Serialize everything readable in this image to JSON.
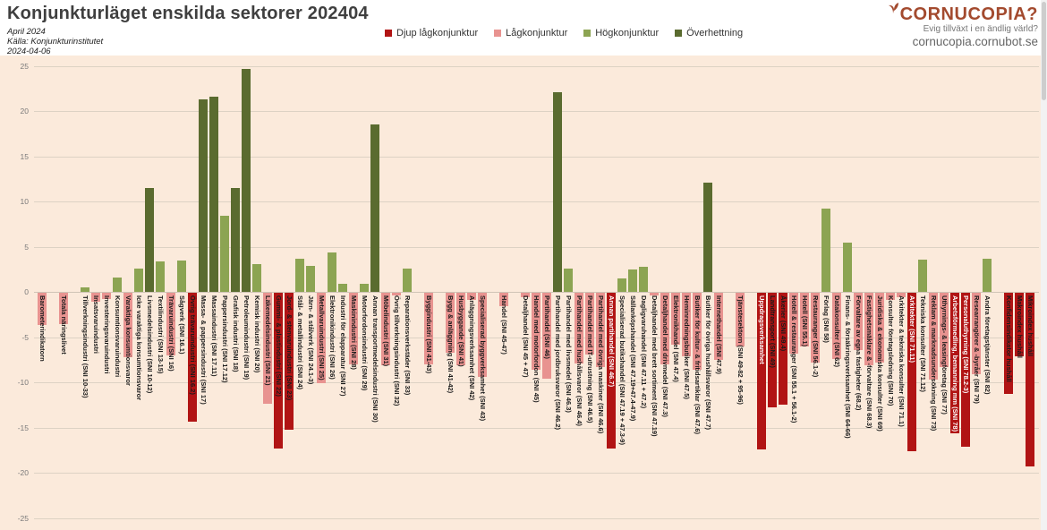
{
  "header": {
    "title": "Konjunkturläget enskilda sektorer 202404",
    "subtitle": [
      "April 2024",
      "Källa: Konjunkturinstitutet",
      "2024-04-06"
    ]
  },
  "logo": {
    "name": "CORNUCOPIA?",
    "tagline": "Evig tillväxt i en ändlig värld?",
    "url": "cornucopia.cornubot.se",
    "color": "#a34a2e"
  },
  "colors": {
    "deep_low": "#b11414",
    "low": "#e89390",
    "high": "#8ca452",
    "overheat": "#5a6b2f"
  },
  "legend": [
    {
      "key": "deep_low",
      "label": "Djup lågkonjunktur"
    },
    {
      "key": "low",
      "label": "Lågkonjunktur"
    },
    {
      "key": "high",
      "label": "Högkonjunktur"
    },
    {
      "key": "overheat",
      "label": "Överhettning"
    }
  ],
  "chart_data": {
    "type": "bar",
    "title": "Konjunkturläget enskilda sektorer 202404",
    "ylim": [
      -25,
      25
    ],
    "yticks": [
      25,
      20,
      15,
      10,
      5,
      0,
      -5,
      -10,
      -15,
      -20,
      -25
    ],
    "grid": true,
    "legend_position": "top",
    "series": [
      {
        "label": "Barometerindikatorn",
        "value": -3.6,
        "cat": "low"
      },
      {
        "label": "Totala näringslivet",
        "value": -3.5,
        "cat": "low",
        "gap": true
      },
      {
        "label": "Tillverkningsindustri (SNI 10-33)",
        "value": 0.5,
        "cat": "high",
        "gap": true
      },
      {
        "label": "Insatsvaruindustri",
        "value": -1.0,
        "cat": "low"
      },
      {
        "label": "Investeringsvaruindustri",
        "value": -0.7,
        "cat": "low"
      },
      {
        "label": "Konsumtionsvaruindustri",
        "value": 1.6,
        "cat": "high"
      },
      {
        "label": "Varaktiga konsumtionsvaror",
        "value": -7.1,
        "cat": "low"
      },
      {
        "label": "Icke varaktiga konsumtionsvaror",
        "value": 2.6,
        "cat": "high"
      },
      {
        "label": "Livsmedelsindustri (SNI 10-12)",
        "value": 11.5,
        "cat": "overheat"
      },
      {
        "label": "Textilindustri (SNI 13-15)",
        "value": 3.4,
        "cat": "high"
      },
      {
        "label": "Trävaruindustri (SNI 16)",
        "value": -6.9,
        "cat": "low"
      },
      {
        "label": "Sågverk (SNI 16.1)",
        "value": 3.5,
        "cat": "high"
      },
      {
        "label": "Övrig trävaruindustri (SNI 16.2)",
        "value": -14.3,
        "cat": "deep_low"
      },
      {
        "label": "Massa- & pappersindustri (SNI 17)",
        "value": 21.3,
        "cat": "overheat"
      },
      {
        "label": "Massaindustri (SNI 17.11)",
        "value": 21.6,
        "cat": "overheat"
      },
      {
        "label": "Pappersindustri (SNI 17.12)",
        "value": 8.4,
        "cat": "high"
      },
      {
        "label": "Grafisk industri (SNI 18)",
        "value": 11.5,
        "cat": "overheat"
      },
      {
        "label": "Petroleumindustri (SNI 19)",
        "value": 24.7,
        "cat": "overheat"
      },
      {
        "label": "Kemisk industri (SNI 20)",
        "value": 3.1,
        "cat": "high"
      },
      {
        "label": "Läkemedelsindustri (SNI 21)",
        "value": -12.3,
        "cat": "low"
      },
      {
        "label": "Gummi- & plastindustri (SNI 22)",
        "value": -17.2,
        "cat": "deep_low"
      },
      {
        "label": "Jord- & stenvaruindustri (SNI 23)",
        "value": -15.1,
        "cat": "deep_low"
      },
      {
        "label": "Stål- & metallindustri (SNI 24)",
        "value": 3.7,
        "cat": "high"
      },
      {
        "label": "Järn- & stålverk (SNI 24.1-3)",
        "value": 2.9,
        "cat": "high"
      },
      {
        "label": "Metallvaruindustri (SNI 25)",
        "value": -10.0,
        "cat": "low"
      },
      {
        "label": "Elektronikindustri (SNI 26)",
        "value": 4.4,
        "cat": "high"
      },
      {
        "label": "Industri för elapparatur (SNI 27)",
        "value": 0.9,
        "cat": "high"
      },
      {
        "label": "Maskinindustri (SNI 28)",
        "value": -7.9,
        "cat": "low"
      },
      {
        "label": "Motorfordonsindustri (SNI 29)",
        "value": 0.9,
        "cat": "high"
      },
      {
        "label": "Annan transportmedelsindustri (SNI 30)",
        "value": 18.5,
        "cat": "overheat"
      },
      {
        "label": "Möbelindustri (SNI 31)",
        "value": -8.0,
        "cat": "low"
      },
      {
        "label": "Övrig tillverkningsindustri (SNI 32)",
        "value": -0.3,
        "cat": "low"
      },
      {
        "label": "Reparationsverkstäder (SNI 33)",
        "value": 2.6,
        "cat": "high"
      },
      {
        "label": "Byggindustri (SNI 41-43)",
        "value": -7.9,
        "cat": "low",
        "gap": true
      },
      {
        "label": "Bygg & anläggning (SNI 41-42)",
        "value": -6.6,
        "cat": "low",
        "gap": true
      },
      {
        "label": "Husbyggande (SNI 41)",
        "value": -8.0,
        "cat": "low"
      },
      {
        "label": "Anläggningsverksamhet (SNI 42)",
        "value": -0.8,
        "cat": "low"
      },
      {
        "label": "Specialiserad byggverksamhet (SNI 43)",
        "value": -9.3,
        "cat": "low"
      },
      {
        "label": "Handel (SNI 45-47)",
        "value": -1.5,
        "cat": "low",
        "gap": true
      },
      {
        "label": "Detaljhandel (SNI 45 + 47)",
        "value": -0.5,
        "cat": "low",
        "gap": true
      },
      {
        "label": "Handel med motorfordon (SNI 45)",
        "value": -8.5,
        "cat": "low"
      },
      {
        "label": "Partihandel (SNI 46)",
        "value": -9.5,
        "cat": "low"
      },
      {
        "label": "Partihandel med jordbruksvaror (SNI 46.2)",
        "value": 22.1,
        "cat": "overheat"
      },
      {
        "label": "Partihandel med livsmedel (SNI 46.3)",
        "value": 2.6,
        "cat": "high"
      },
      {
        "label": "Partihandel med hushållsvaror (SNI 46.4)",
        "value": -7.8,
        "cat": "low"
      },
      {
        "label": "Partihandel med IT-utrustning (SNI 46.5)",
        "value": -6.8,
        "cat": "low"
      },
      {
        "label": "Partihandel med övriga maskiner (SNI 46.6)",
        "value": -8.2,
        "cat": "low"
      },
      {
        "label": "Annan partihandel (SNI 46.7)",
        "value": -17.2,
        "cat": "deep_low",
        "white": true
      },
      {
        "label": "Specialiserad butikshandel (SNI 47.19 + 47.3-9)",
        "value": 1.5,
        "cat": "high"
      },
      {
        "label": "Sällanköpshandel (SNI 47.19+47.4-47.9)",
        "value": 2.5,
        "cat": "high"
      },
      {
        "label": "Dagligvaruhandel (SNI 47.11 + 47.2)",
        "value": 2.8,
        "cat": "high"
      },
      {
        "label": "Detaljhandel med brett sortiment (SNI 47.19)",
        "value": -0.3,
        "cat": "low"
      },
      {
        "label": "Detaljhandel med drivmedel (SNI 47.3)",
        "value": -7.9,
        "cat": "low"
      },
      {
        "label": "Elektronikhandel (SNI 47.4)",
        "value": -5.7,
        "cat": "low"
      },
      {
        "label": "Heminredningsbutiker (SNI 47.5)",
        "value": -7.0,
        "cat": "low"
      },
      {
        "label": "Butiker för kultur- & fritidsartiklar (SNI 47.6)",
        "value": -8.5,
        "cat": "low"
      },
      {
        "label": "Butiker för övriga hushållsvaror (SNI 47.7)",
        "value": 12.1,
        "cat": "overheat"
      },
      {
        "label": "Internethandel (SNI 47.9)",
        "value": -7.4,
        "cat": "low"
      },
      {
        "label": "Tjänstesektorn (SNI 49-82 + 95-96)",
        "value": -5.9,
        "cat": "low",
        "gap": true
      },
      {
        "label": "Uppdragsverksamhet",
        "value": -17.3,
        "cat": "deep_low",
        "white": true,
        "gap": true
      },
      {
        "label": "Landtransport (SNI 49)",
        "value": -12.7,
        "cat": "deep_low"
      },
      {
        "label": "Åkerier (SNI 49.4)",
        "value": -12.4,
        "cat": "deep_low"
      },
      {
        "label": "Hotell & restauranger (SNI 55.1 + 56.1-2)",
        "value": -6.7,
        "cat": "low"
      },
      {
        "label": "Hotell (SNI 55.1)",
        "value": -5.9,
        "cat": "low"
      },
      {
        "label": "Restauranger (SNI 56.1-2)",
        "value": -7.7,
        "cat": "low"
      },
      {
        "label": "Förlag (SNI 58)",
        "value": 9.2,
        "cat": "high"
      },
      {
        "label": "Datakonsulter (SNI 62)",
        "value": -7.3,
        "cat": "low"
      },
      {
        "label": "Finans- & försäkringsverksamhet (SNI 64-66)",
        "value": 5.4,
        "cat": "high"
      },
      {
        "label": "Förvaltare av egna fastigheter (68.2)",
        "value": -6.3,
        "cat": "low"
      },
      {
        "label": "Fastighetsmäklare & -förvaltare (SNI 68.3)",
        "value": -8.0,
        "cat": "low"
      },
      {
        "label": "Juridiska & ekonomiska konsulter (SNI 69)",
        "value": -7.7,
        "cat": "low"
      },
      {
        "label": "Konsulter företagsledning (SNI 70)",
        "value": -0.8,
        "cat": "low"
      },
      {
        "label": "Arkitekter & tekniska konsulter (SNI 71.1)",
        "value": -0.5,
        "cat": "low"
      },
      {
        "label": "Arkitekter (SNI 71.11)",
        "value": -17.5,
        "cat": "deep_low",
        "white": true
      },
      {
        "label": "Tekniska konsulter (SNI 71.12)",
        "value": 3.6,
        "cat": "high"
      },
      {
        "label": "Reklam & marknadsundersökning (SNI 73)",
        "value": -9.6,
        "cat": "low"
      },
      {
        "label": "Uthyrnings- & leasingföretag (SNI 77)",
        "value": -8.2,
        "cat": "low"
      },
      {
        "label": "Arbetsförmedling, bemanning mm (SNI 78)",
        "value": -15.5,
        "cat": "deep_low",
        "white": true
      },
      {
        "label": "Personaluthyrning (SNI 78.2-3)",
        "value": -17.0,
        "cat": "deep_low",
        "white": true
      },
      {
        "label": "Researrangörer & -byråer (SNI 79)",
        "value": -9.0,
        "cat": "low"
      },
      {
        "label": "Andra företagstjänster (SNI 82)",
        "value": 3.7,
        "cat": "high"
      },
      {
        "label": "Konfidensindikator hushåll",
        "value": -11.2,
        "cat": "deep_low",
        "gap": true
      },
      {
        "label": "Makroindex hushåll",
        "value": -7.0,
        "cat": "deep_low"
      },
      {
        "label": "Mikroindex hushåll",
        "value": -19.2,
        "cat": "deep_low"
      }
    ]
  }
}
